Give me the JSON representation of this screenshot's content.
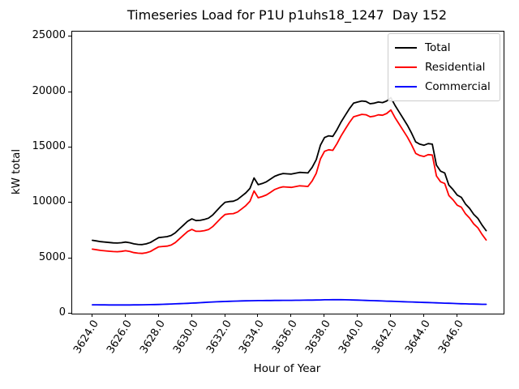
{
  "figure": {
    "background": "#ffffff",
    "spine_color": "#000000"
  },
  "chart_data": {
    "type": "line",
    "title": "Timeseries Load for P1U p1uhs18_1247  Day 152",
    "xlabel": "Hour of Year",
    "ylabel": "kW total",
    "xlim": [
      3622.78,
      3648.8
    ],
    "ylim": [
      0,
      25460
    ],
    "grid": false,
    "legend_position": "upper right",
    "xticks": [
      {
        "value": 3624,
        "label": "3624.0"
      },
      {
        "value": 3626,
        "label": "3626.0"
      },
      {
        "value": 3628,
        "label": "3628.0"
      },
      {
        "value": 3630,
        "label": "3630.0"
      },
      {
        "value": 3632,
        "label": "3632.0"
      },
      {
        "value": 3634,
        "label": "3634.0"
      },
      {
        "value": 3636,
        "label": "3636.0"
      },
      {
        "value": 3638,
        "label": "3638.0"
      },
      {
        "value": 3640,
        "label": "3640.0"
      },
      {
        "value": 3642,
        "label": "3642.0"
      },
      {
        "value": 3644,
        "label": "3644.0"
      },
      {
        "value": 3646,
        "label": "3646.0"
      }
    ],
    "yticks": [
      {
        "value": 0,
        "label": "0"
      },
      {
        "value": 5000,
        "label": "5000"
      },
      {
        "value": 10000,
        "label": "10000"
      },
      {
        "value": 15000,
        "label": "15000"
      },
      {
        "value": 20000,
        "label": "20000"
      },
      {
        "value": 25000,
        "label": "25000"
      }
    ],
    "x": [
      3624.0,
      3624.25,
      3624.5,
      3624.75,
      3625.0,
      3625.25,
      3625.5,
      3625.75,
      3626.0,
      3626.25,
      3626.5,
      3626.75,
      3627.0,
      3627.25,
      3627.5,
      3627.75,
      3628.0,
      3628.25,
      3628.5,
      3628.75,
      3629.0,
      3629.25,
      3629.5,
      3629.75,
      3630.0,
      3630.25,
      3630.5,
      3630.75,
      3631.0,
      3631.25,
      3631.5,
      3631.75,
      3632.0,
      3632.25,
      3632.5,
      3632.75,
      3633.0,
      3633.25,
      3633.5,
      3633.75,
      3634.0,
      3634.25,
      3634.5,
      3634.75,
      3635.0,
      3635.25,
      3635.5,
      3635.75,
      3636.0,
      3636.25,
      3636.5,
      3636.75,
      3637.0,
      3637.25,
      3637.5,
      3637.75,
      3638.0,
      3638.25,
      3638.5,
      3638.75,
      3639.0,
      3639.25,
      3639.5,
      3639.75,
      3640.0,
      3640.25,
      3640.5,
      3640.75,
      3641.0,
      3641.25,
      3641.5,
      3641.75,
      3642.0,
      3642.25,
      3642.5,
      3642.75,
      3643.0,
      3643.25,
      3643.5,
      3643.75,
      3644.0,
      3644.25,
      3644.5,
      3644.75,
      3645.0,
      3645.25,
      3645.5,
      3645.75,
      3646.0,
      3646.25,
      3646.5,
      3646.75,
      3647.0,
      3647.25,
      3647.5,
      3647.75
    ],
    "series": [
      {
        "name": "Total",
        "color": "#000000",
        "values": [
          6620,
          6560,
          6500,
          6460,
          6420,
          6390,
          6370,
          6400,
          6460,
          6400,
          6300,
          6250,
          6230,
          6300,
          6420,
          6650,
          6860,
          6910,
          6950,
          7060,
          7300,
          7650,
          8000,
          8350,
          8550,
          8400,
          8420,
          8500,
          8620,
          8900,
          9300,
          9700,
          10050,
          10120,
          10150,
          10300,
          10600,
          10900,
          11300,
          12250,
          11640,
          11750,
          11900,
          12150,
          12400,
          12550,
          12650,
          12620,
          12600,
          12680,
          12750,
          12730,
          12700,
          13200,
          13900,
          15200,
          15900,
          16050,
          16000,
          16600,
          17300,
          17900,
          18500,
          19000,
          19100,
          19200,
          19150,
          18950,
          19000,
          19100,
          19050,
          19200,
          19500,
          18800,
          18200,
          17600,
          17000,
          16300,
          15500,
          15300,
          15200,
          15350,
          15300,
          13400,
          12860,
          12700,
          11600,
          11200,
          10700,
          10500,
          9900,
          9500,
          8960,
          8600,
          8000,
          7490
        ]
      },
      {
        "name": "Residential",
        "color": "#ff0000",
        "values": [
          5820,
          5765,
          5710,
          5672,
          5635,
          5607,
          5588,
          5618,
          5677,
          5615,
          5512,
          5458,
          5433,
          5497,
          5610,
          5830,
          6030,
          6068,
          6095,
          6192,
          6418,
          6753,
          7087,
          7420,
          7602,
          7433,
          7433,
          7492,
          7590,
          7850,
          8232,
          8615,
          8950,
          9007,
          9025,
          9164,
          9454,
          9745,
          10137,
          11080,
          10464,
          10569,
          10715,
          10962,
          11209,
          11356,
          11453,
          11420,
          11397,
          11474,
          11540,
          11516,
          11481,
          11975,
          12668,
          13960,
          14652,
          14796,
          14742,
          15340,
          16042,
          16648,
          17257,
          17768,
          17880,
          17993,
          17956,
          17769,
          17832,
          17945,
          17908,
          18071,
          18384,
          17697,
          17110,
          16523,
          15936,
          15249,
          14462,
          14275,
          14188,
          14351,
          14314,
          12427,
          11900,
          11753,
          10666,
          10279,
          9792,
          9605,
          9017,
          8628,
          8098,
          7747,
          7155,
          6652
        ]
      },
      {
        "name": "Commercial",
        "color": "#0000ff",
        "values": [
          800,
          795,
          790,
          788,
          785,
          783,
          782,
          782,
          783,
          785,
          788,
          792,
          797,
          803,
          810,
          820,
          830,
          842,
          855,
          868,
          882,
          897,
          913,
          930,
          948,
          967,
          987,
          1008,
          1030,
          1050,
          1068,
          1085,
          1100,
          1113,
          1125,
          1136,
          1146,
          1155,
          1163,
          1170,
          1176,
          1181,
          1185,
          1188,
          1191,
          1194,
          1197,
          1200,
          1203,
          1206,
          1210,
          1214,
          1219,
          1225,
          1232,
          1240,
          1248,
          1254,
          1258,
          1260,
          1258,
          1252,
          1243,
          1232,
          1220,
          1207,
          1194,
          1181,
          1168,
          1155,
          1142,
          1129,
          1116,
          1103,
          1090,
          1077,
          1064,
          1051,
          1038,
          1025,
          1012,
          999,
          986,
          973,
          960,
          947,
          934,
          921,
          908,
          895,
          883,
          872,
          862,
          853,
          845,
          838
        ]
      }
    ]
  }
}
